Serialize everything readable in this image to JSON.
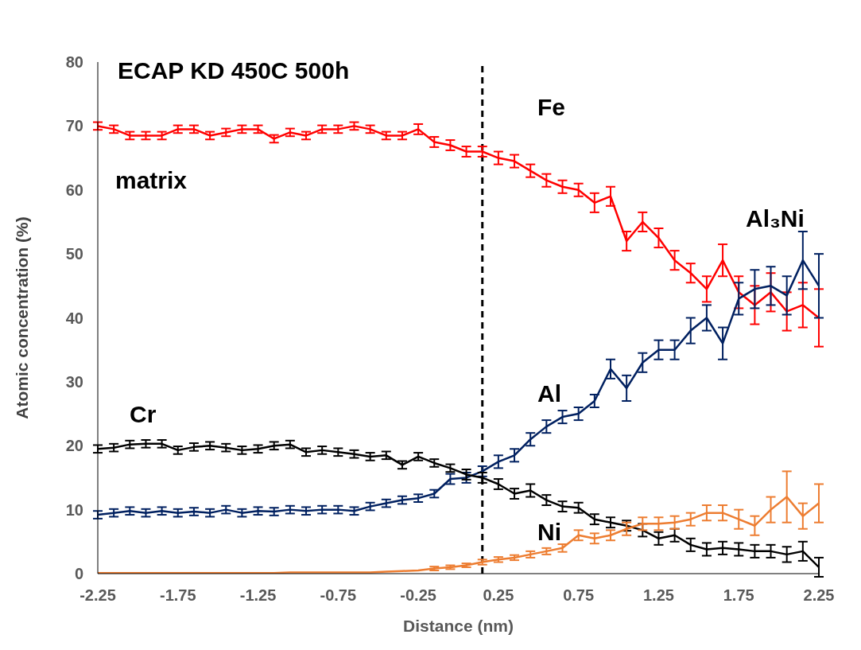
{
  "chart_data": {
    "type": "line",
    "title": "ECAP KD 450C 500h",
    "xlabel": "Distance (nm)",
    "ylabel": "Atomic concentration (%)",
    "x": [
      -2.25,
      -2.15,
      -2.05,
      -1.95,
      -1.85,
      -1.75,
      -1.65,
      -1.55,
      -1.45,
      -1.35,
      -1.25,
      -1.15,
      -1.05,
      -0.95,
      -0.85,
      -0.75,
      -0.65,
      -0.55,
      -0.45,
      -0.35,
      -0.25,
      -0.15,
      -0.05,
      0.05,
      0.15,
      0.25,
      0.35,
      0.45,
      0.55,
      0.65,
      0.75,
      0.85,
      0.95,
      1.05,
      1.15,
      1.25,
      1.35,
      1.45,
      1.55,
      1.65,
      1.75,
      1.85,
      1.95,
      2.05,
      2.15,
      2.25
    ],
    "series": [
      {
        "name": "Fe",
        "color": "#ff0000",
        "values": [
          70,
          69.5,
          68.5,
          68.5,
          68.5,
          69.5,
          69.5,
          68.5,
          69,
          69.5,
          69.5,
          68,
          69,
          68.5,
          69.5,
          69.5,
          70,
          69.5,
          68.5,
          68.5,
          69.5,
          67.5,
          67,
          66,
          66,
          65,
          64.5,
          63,
          61.5,
          60.5,
          60,
          58,
          59,
          52,
          55,
          52.5,
          49,
          47,
          44.5,
          49,
          44,
          42,
          44,
          41,
          42,
          40
        ],
        "errors": [
          0.6,
          0.6,
          0.6,
          0.6,
          0.6,
          0.6,
          0.6,
          0.6,
          0.6,
          0.6,
          0.6,
          0.6,
          0.6,
          0.6,
          0.6,
          0.6,
          0.6,
          0.6,
          0.6,
          0.6,
          0.8,
          0.8,
          0.8,
          0.8,
          0.8,
          1,
          1,
          1,
          1,
          1,
          1,
          1.5,
          1.5,
          1.5,
          1.5,
          1.5,
          1.5,
          1.5,
          2,
          2.5,
          2.5,
          3,
          3,
          3,
          3.5,
          4.5
        ]
      },
      {
        "name": "Al",
        "color": "#002060",
        "values": [
          9.2,
          9.5,
          9.8,
          9.5,
          9.8,
          9.5,
          9.7,
          9.5,
          10,
          9.5,
          9.8,
          9.7,
          10,
          9.8,
          10,
          10,
          9.8,
          10.5,
          11,
          11.5,
          11.8,
          12.5,
          14.8,
          15,
          16,
          17.5,
          18.5,
          21,
          23,
          24.5,
          25,
          27,
          32,
          29,
          33,
          35,
          35,
          38,
          40,
          36,
          43,
          44.5,
          45,
          43.5,
          49,
          45
        ],
        "errors": [
          0.6,
          0.6,
          0.6,
          0.6,
          0.6,
          0.6,
          0.6,
          0.6,
          0.6,
          0.6,
          0.6,
          0.6,
          0.6,
          0.6,
          0.6,
          0.6,
          0.6,
          0.6,
          0.6,
          0.6,
          0.6,
          0.6,
          0.8,
          0.8,
          0.8,
          1,
          1,
          1,
          1,
          1,
          1,
          1,
          1.5,
          2,
          1.5,
          1.5,
          1.5,
          2,
          2,
          2.5,
          2.5,
          3,
          3,
          3,
          4.5,
          5
        ]
      },
      {
        "name": "Cr",
        "color": "#000000",
        "values": [
          19.5,
          19.7,
          20.2,
          20.3,
          20.3,
          19.3,
          19.8,
          20,
          19.7,
          19.3,
          19.5,
          20,
          20.2,
          19,
          19.3,
          19,
          18.7,
          18.3,
          18.5,
          17,
          18.3,
          17.3,
          16.5,
          15.5,
          15,
          14,
          12.5,
          13,
          11.5,
          10.5,
          10.3,
          8.5,
          8,
          7.5,
          6.8,
          5.5,
          6,
          4.5,
          3.8,
          4,
          3.8,
          3.5,
          3.5,
          3,
          3.5,
          1
        ],
        "errors": [
          0.6,
          0.6,
          0.6,
          0.6,
          0.6,
          0.6,
          0.6,
          0.6,
          0.6,
          0.6,
          0.6,
          0.6,
          0.6,
          0.6,
          0.6,
          0.6,
          0.6,
          0.6,
          0.6,
          0.6,
          0.6,
          0.6,
          0.6,
          0.8,
          0.8,
          0.8,
          0.8,
          1,
          0.8,
          0.8,
          0.8,
          0.8,
          0.8,
          0.8,
          1,
          1,
          1,
          1,
          1,
          1,
          1,
          1,
          1,
          1.2,
          1.5,
          1.5
        ]
      },
      {
        "name": "Ni",
        "color": "#ed7d31",
        "values": [
          0.1,
          0.1,
          0.1,
          0.1,
          0.1,
          0.1,
          0.1,
          0.1,
          0.1,
          0.1,
          0.1,
          0.1,
          0.2,
          0.2,
          0.2,
          0.2,
          0.2,
          0.2,
          0.3,
          0.4,
          0.5,
          0.8,
          1,
          1.3,
          1.8,
          2.2,
          2.5,
          3,
          3.5,
          4,
          6,
          5.5,
          6,
          7,
          7.8,
          7.8,
          8,
          8.5,
          9.5,
          9.5,
          8.5,
          7.5,
          10,
          12,
          9,
          11
        ],
        "errors": [
          null,
          null,
          null,
          null,
          null,
          null,
          null,
          null,
          null,
          null,
          null,
          null,
          null,
          null,
          null,
          null,
          null,
          null,
          null,
          null,
          null,
          0.3,
          0.3,
          0.3,
          0.4,
          0.4,
          0.4,
          0.5,
          0.5,
          0.6,
          0.8,
          0.8,
          0.8,
          1,
          1,
          1,
          1,
          1,
          1.2,
          1.2,
          1.5,
          1.5,
          2,
          4,
          2,
          3
        ]
      }
    ],
    "xlim": [
      -2.25,
      2.25
    ],
    "xticks": [
      -2.25,
      -1.75,
      -1.25,
      -0.75,
      -0.25,
      0.25,
      0.75,
      1.25,
      1.75,
      2.25
    ],
    "ylim": [
      0,
      80
    ],
    "yticks": [
      0,
      10,
      20,
      30,
      40,
      50,
      60,
      70,
      80
    ],
    "ref_lines": [
      {
        "axis": "x",
        "value": 0.15,
        "color": "#000000",
        "line_style": "dashed"
      }
    ],
    "annotations": [
      "matrix",
      "Al₃Ni"
    ],
    "marker": "none",
    "line_style": "solid"
  }
}
